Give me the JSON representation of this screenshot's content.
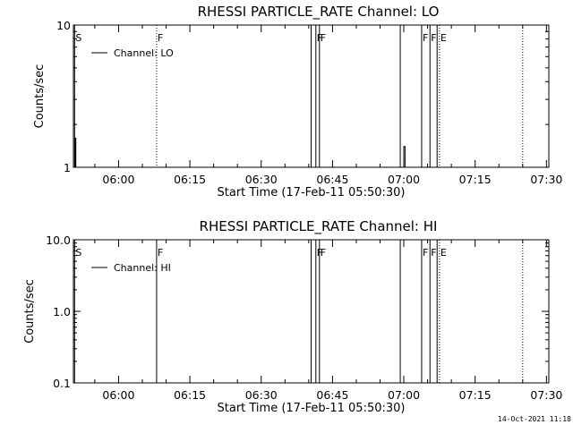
{
  "chart_data": [
    {
      "type": "line",
      "title": "RHESSI PARTICLE_RATE Channel: LO",
      "xlabel": "Start Time (17-Feb-11 05:50:30)",
      "ylabel": "Counts/sec",
      "y_scale": "log",
      "ylim": [
        1,
        10
      ],
      "xlim": [
        "05:50:30",
        "07:30:30"
      ],
      "yticks": [
        "1",
        "10"
      ],
      "xticks": [
        "06:00",
        "06:15",
        "06:30",
        "06:45",
        "07:00",
        "07:15",
        "07:30"
      ],
      "legend": {
        "label": "Channel: LO",
        "placement": "top-left"
      },
      "flags": [
        {
          "label": "S",
          "time": "05:50:45",
          "line": "solid"
        },
        {
          "label": "F",
          "time": "06:08:00",
          "line": "dotted"
        },
        {
          "label": "F",
          "time": "06:41:30",
          "line": "solid"
        },
        {
          "label": "F",
          "time": "06:42:15",
          "line": "solid"
        },
        {
          "label": "F",
          "time": "07:03:45",
          "line": "solid"
        },
        {
          "label": "F",
          "time": "07:05:30",
          "line": "solid"
        },
        {
          "label": "E",
          "time": "07:07:30",
          "line": "dotted"
        }
      ],
      "extra_lines": [
        {
          "time": "06:40:30",
          "line": "solid"
        },
        {
          "time": "06:59:15",
          "line": "solid"
        },
        {
          "time": "07:07:00",
          "line": "solid"
        },
        {
          "time": "07:25:00",
          "line": "dotted"
        }
      ],
      "series": [
        {
          "name": "Channel: LO",
          "segments": [
            {
              "x": [
                "05:50:50",
                "05:50:50",
                "05:51:00",
                "05:51:00"
              ],
              "y": [
                1.0,
                1.6,
                1.6,
                1.0
              ]
            },
            {
              "x": [
                "07:00:00",
                "07:00:00",
                "07:00:15",
                "07:00:15"
              ],
              "y": [
                1.0,
                1.4,
                1.4,
                1.0
              ]
            }
          ]
        }
      ],
      "grid": false
    },
    {
      "type": "line",
      "title": "RHESSI PARTICLE_RATE Channel: HI",
      "xlabel": "Start Time (17-Feb-11 05:50:30)",
      "ylabel": "Counts/sec",
      "y_scale": "log",
      "ylim": [
        0.1,
        10
      ],
      "xlim": [
        "05:50:30",
        "07:30:30"
      ],
      "yticks": [
        "0.1",
        "1.0",
        "10.0"
      ],
      "xticks": [
        "06:00",
        "06:15",
        "06:30",
        "06:45",
        "07:00",
        "07:15",
        "07:30"
      ],
      "legend": {
        "label": "Channel: HI",
        "placement": "top-left"
      },
      "flags": [
        {
          "label": "S",
          "time": "05:50:45",
          "line": "solid"
        },
        {
          "label": "F",
          "time": "06:08:00",
          "line": "solid"
        },
        {
          "label": "F",
          "time": "06:41:30",
          "line": "solid"
        },
        {
          "label": "F",
          "time": "06:42:15",
          "line": "solid"
        },
        {
          "label": "F",
          "time": "07:03:45",
          "line": "solid"
        },
        {
          "label": "F",
          "time": "07:05:30",
          "line": "solid"
        },
        {
          "label": "E",
          "time": "07:07:30",
          "line": "dotted"
        }
      ],
      "extra_lines": [
        {
          "time": "06:40:30",
          "line": "solid"
        },
        {
          "time": "06:59:15",
          "line": "solid"
        },
        {
          "time": "07:07:00",
          "line": "solid"
        },
        {
          "time": "07:25:00",
          "line": "dotted"
        }
      ],
      "series": [
        {
          "name": "Channel: HI",
          "segments": []
        }
      ],
      "grid": false
    }
  ],
  "footer": {
    "timestamp": "14-Oct-2021 11:18"
  }
}
